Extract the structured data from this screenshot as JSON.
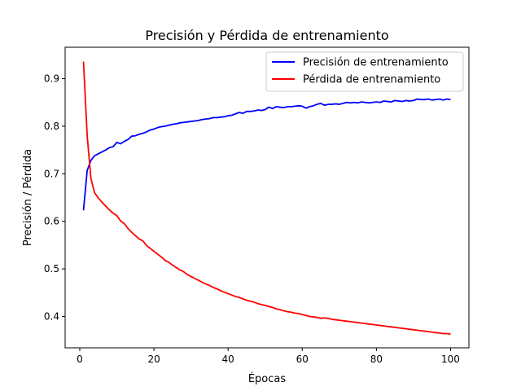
{
  "chart_data": {
    "type": "line",
    "title": "Precisión y Pérdida de entrenamiento",
    "xlabel": "Épocas",
    "ylabel": "Precisión / Pérdida",
    "xlim": [
      -3.95,
      104.95
    ],
    "ylim": [
      0.334,
      0.966
    ],
    "xticks": [
      0,
      20,
      40,
      60,
      80,
      100
    ],
    "yticks": [
      0.4,
      0.5,
      0.6,
      0.7,
      0.8,
      0.9
    ],
    "ytick_labels": [
      "0.4",
      "0.5",
      "0.6",
      "0.7",
      "0.8",
      "0.9"
    ],
    "grid": false,
    "legend_position": "top-right",
    "x": [
      1,
      2,
      3,
      4,
      5,
      6,
      7,
      8,
      9,
      10,
      11,
      12,
      13,
      14,
      15,
      16,
      17,
      18,
      19,
      20,
      21,
      22,
      23,
      24,
      25,
      26,
      27,
      28,
      29,
      30,
      31,
      32,
      33,
      34,
      35,
      36,
      37,
      38,
      39,
      40,
      41,
      42,
      43,
      44,
      45,
      46,
      47,
      48,
      49,
      50,
      51,
      52,
      53,
      54,
      55,
      56,
      57,
      58,
      59,
      60,
      61,
      62,
      63,
      64,
      65,
      66,
      67,
      68,
      69,
      70,
      71,
      72,
      73,
      74,
      75,
      76,
      77,
      78,
      79,
      80,
      81,
      82,
      83,
      84,
      85,
      86,
      87,
      88,
      89,
      90,
      91,
      92,
      93,
      94,
      95,
      96,
      97,
      98,
      99,
      100
    ],
    "series": [
      {
        "name": "Precisión de entrenamiento",
        "color": "#0000ff",
        "values": [
          0.623,
          0.707,
          0.728,
          0.738,
          0.742,
          0.746,
          0.75,
          0.755,
          0.757,
          0.766,
          0.763,
          0.768,
          0.772,
          0.779,
          0.78,
          0.783,
          0.785,
          0.788,
          0.792,
          0.794,
          0.797,
          0.799,
          0.8,
          0.802,
          0.804,
          0.805,
          0.807,
          0.808,
          0.809,
          0.81,
          0.811,
          0.812,
          0.814,
          0.815,
          0.816,
          0.818,
          0.818,
          0.819,
          0.82,
          0.822,
          0.823,
          0.826,
          0.829,
          0.827,
          0.831,
          0.831,
          0.832,
          0.834,
          0.833,
          0.835,
          0.84,
          0.837,
          0.841,
          0.84,
          0.839,
          0.841,
          0.841,
          0.842,
          0.843,
          0.842,
          0.838,
          0.841,
          0.843,
          0.846,
          0.848,
          0.844,
          0.846,
          0.846,
          0.847,
          0.846,
          0.848,
          0.85,
          0.849,
          0.85,
          0.849,
          0.851,
          0.85,
          0.849,
          0.85,
          0.851,
          0.85,
          0.853,
          0.852,
          0.851,
          0.854,
          0.853,
          0.852,
          0.854,
          0.853,
          0.854,
          0.857,
          0.856,
          0.856,
          0.857,
          0.855,
          0.856,
          0.857,
          0.855,
          0.857,
          0.856
        ]
      },
      {
        "name": "Pérdida de entrenamiento",
        "color": "#ff0000",
        "values": [
          0.936,
          0.78,
          0.69,
          0.66,
          0.649,
          0.64,
          0.632,
          0.624,
          0.617,
          0.612,
          0.601,
          0.595,
          0.585,
          0.577,
          0.57,
          0.563,
          0.559,
          0.549,
          0.543,
          0.537,
          0.531,
          0.525,
          0.518,
          0.514,
          0.508,
          0.503,
          0.498,
          0.494,
          0.488,
          0.484,
          0.48,
          0.476,
          0.472,
          0.468,
          0.465,
          0.461,
          0.458,
          0.454,
          0.451,
          0.448,
          0.445,
          0.442,
          0.44,
          0.437,
          0.434,
          0.432,
          0.43,
          0.427,
          0.425,
          0.423,
          0.421,
          0.419,
          0.416,
          0.414,
          0.412,
          0.41,
          0.409,
          0.407,
          0.406,
          0.404,
          0.402,
          0.4,
          0.399,
          0.398,
          0.396,
          0.397,
          0.396,
          0.394,
          0.393,
          0.392,
          0.391,
          0.39,
          0.389,
          0.388,
          0.387,
          0.386,
          0.385,
          0.384,
          0.383,
          0.382,
          0.381,
          0.38,
          0.379,
          0.378,
          0.377,
          0.376,
          0.375,
          0.374,
          0.373,
          0.372,
          0.371,
          0.37,
          0.369,
          0.368,
          0.367,
          0.366,
          0.365,
          0.364,
          0.364,
          0.363
        ]
      }
    ]
  }
}
